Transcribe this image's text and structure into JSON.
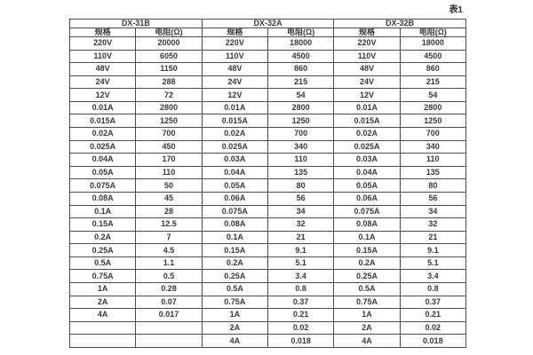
{
  "caption": "表1",
  "table": {
    "groups": [
      {
        "name": "DX-31B",
        "spec_header": "规格",
        "resistance_header": "电阻(Ω)"
      },
      {
        "name": "DX-32A",
        "spec_header": "规格",
        "resistance_header": "电阻(Ω)"
      },
      {
        "name": "DX-32B",
        "spec_header": "规格",
        "resistance_header": "电阻(Ω)"
      }
    ],
    "rows": [
      [
        "220V",
        "20000",
        "220V",
        "18000",
        "220V",
        "18000"
      ],
      [
        "110V",
        "6050",
        "110V",
        "4500",
        "110V",
        "4500"
      ],
      [
        "48V",
        "1150",
        "48V",
        "860",
        "48V",
        "860"
      ],
      [
        "24V",
        "288",
        "24V",
        "215",
        "24V",
        "215"
      ],
      [
        "12V",
        "72",
        "12V",
        "54",
        "12V",
        "54"
      ],
      [
        "0.01A",
        "2800",
        "0.01A",
        "2800",
        "0.01A",
        "2800"
      ],
      [
        "0.015A",
        "1250",
        "0.015A",
        "1250",
        "0.015A",
        "1250"
      ],
      [
        "0.02A",
        "700",
        "0.02A",
        "700",
        "0.02A",
        "700"
      ],
      [
        "0.025A",
        "450",
        "0.025A",
        "340",
        "0.025A",
        "340"
      ],
      [
        "0.04A",
        "170",
        "0.03A",
        "110",
        "0.03A",
        "110"
      ],
      [
        "0.05A",
        "110",
        "0.04A",
        "135",
        "0.04A",
        "135"
      ],
      [
        "0.075A",
        "50",
        "0.05A",
        "80",
        "0.05A",
        "80"
      ],
      [
        "0.08A",
        "45",
        "0.06A",
        "56",
        "0.06A",
        "56"
      ],
      [
        "0.1A",
        "28",
        "0.075A",
        "34",
        "0.075A",
        "34"
      ],
      [
        "0.15A",
        "12.5",
        "0.08A",
        "32",
        "0.08A",
        "32"
      ],
      [
        "0.2A",
        "7",
        "0.1A",
        "21",
        "0.1A",
        "21"
      ],
      [
        "0.25A",
        "4.5",
        "0.15A",
        "9.1",
        "0.15A",
        "9.1"
      ],
      [
        "0.5A",
        "1.1",
        "0.2A",
        "5.1",
        "0.2A",
        "5.1"
      ],
      [
        "0.75A",
        "0.5",
        "0.25A",
        "3.4",
        "0.25A",
        "3.4"
      ],
      [
        "1A",
        "0.28",
        "0.5A",
        "0.8",
        "0.5A",
        "0.8"
      ],
      [
        "2A",
        "0.07",
        "0.75A",
        "0.37",
        "0.75A",
        "0.37"
      ],
      [
        "4A",
        "0.017",
        "1A",
        "0.21",
        "1A",
        "0.21"
      ],
      [
        "",
        "",
        "2A",
        "0.02",
        "2A",
        "0.02"
      ],
      [
        "",
        "",
        "4A",
        "0.018",
        "4A",
        "0.018"
      ]
    ],
    "colors": {
      "border": "#4d4d4d",
      "text": "#3a3a3a",
      "background": "#ffffff"
    }
  }
}
